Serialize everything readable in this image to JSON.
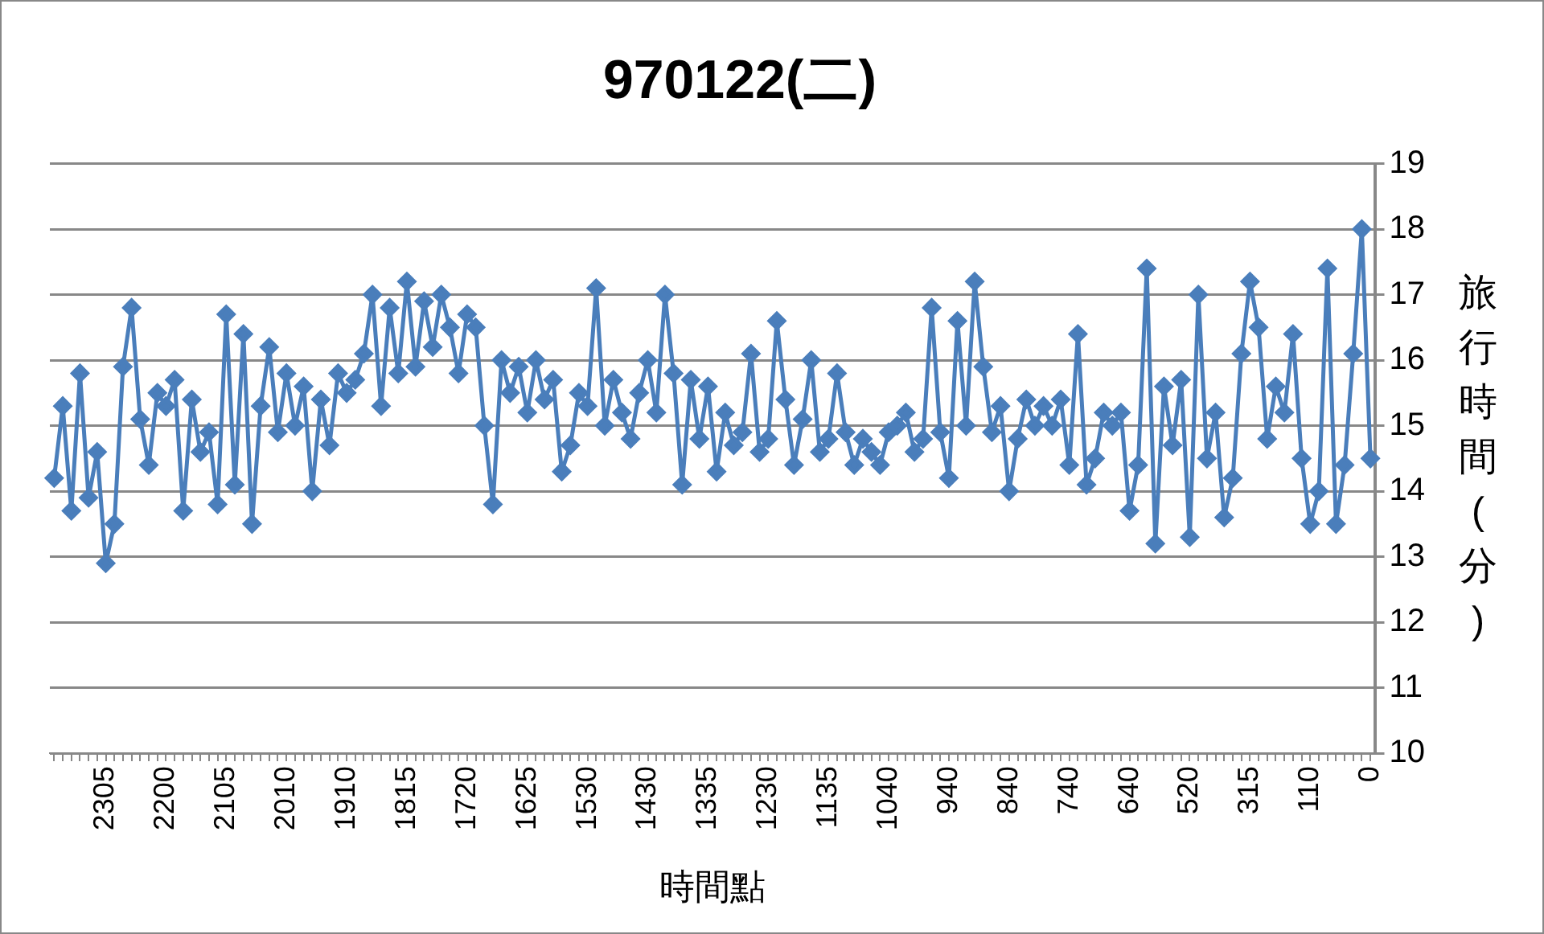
{
  "chart_data": {
    "type": "line",
    "title": "970122(二)",
    "xlabel": "時間點",
    "ylabel": "旅行時間(分)",
    "categories": [
      null,
      null,
      null,
      null,
      null,
      null,
      "2305",
      null,
      null,
      null,
      null,
      null,
      null,
      "2200",
      null,
      null,
      null,
      null,
      null,
      null,
      "2105",
      null,
      null,
      null,
      null,
      null,
      null,
      "2010",
      null,
      null,
      null,
      null,
      null,
      null,
      "1910",
      null,
      null,
      null,
      null,
      null,
      null,
      "1815",
      null,
      null,
      null,
      null,
      null,
      null,
      "1720",
      null,
      null,
      null,
      null,
      null,
      null,
      "1625",
      null,
      null,
      null,
      null,
      null,
      null,
      "1530",
      null,
      null,
      null,
      null,
      null,
      null,
      "1430",
      null,
      null,
      null,
      null,
      null,
      null,
      "1335",
      null,
      null,
      null,
      null,
      null,
      null,
      "1230",
      null,
      null,
      null,
      null,
      null,
      null,
      "1135",
      null,
      null,
      null,
      null,
      null,
      null,
      "1040",
      null,
      null,
      null,
      null,
      null,
      null,
      "940",
      null,
      null,
      null,
      null,
      null,
      null,
      "840",
      null,
      null,
      null,
      null,
      null,
      null,
      "740",
      null,
      null,
      null,
      null,
      null,
      null,
      "640",
      null,
      null,
      null,
      null,
      null,
      null,
      "520",
      null,
      null,
      null,
      null,
      null,
      null,
      "315",
      null,
      null,
      null,
      null,
      null,
      null,
      "110",
      null,
      null,
      null,
      null,
      null,
      null,
      "0"
    ],
    "series": [
      {
        "color": "#4a7ebb",
        "values": [
          14.2,
          15.3,
          13.7,
          15.8,
          13.9,
          14.6,
          12.9,
          13.5,
          15.9,
          16.8,
          15.1,
          14.4,
          15.5,
          15.3,
          15.7,
          13.7,
          15.4,
          14.6,
          14.9,
          13.8,
          16.7,
          14.1,
          16.4,
          13.5,
          15.3,
          16.2,
          14.9,
          15.8,
          15.0,
          15.6,
          14.0,
          15.4,
          14.7,
          15.8,
          15.5,
          15.7,
          16.1,
          17.0,
          15.3,
          16.8,
          15.8,
          17.2,
          15.9,
          16.9,
          16.2,
          17.0,
          16.5,
          15.8,
          16.7,
          16.5,
          15.0,
          13.8,
          16.0,
          15.5,
          15.9,
          15.2,
          16.0,
          15.4,
          15.7,
          14.3,
          14.7,
          15.5,
          15.3,
          17.1,
          15.0,
          15.7,
          15.2,
          14.8,
          15.5,
          16.0,
          15.2,
          17.0,
          15.8,
          14.1,
          15.7,
          14.8,
          15.6,
          14.3,
          15.2,
          14.7,
          14.9,
          16.1,
          14.6,
          14.8,
          16.6,
          15.4,
          14.4,
          15.1,
          16.0,
          14.6,
          14.8,
          15.8,
          14.9,
          14.4,
          14.8,
          14.6,
          14.4,
          14.9,
          15.0,
          15.2,
          14.6,
          14.8,
          16.8,
          14.9,
          14.2,
          16.6,
          15.0,
          17.2,
          15.9,
          14.9,
          15.3,
          14.0,
          14.8,
          15.4,
          15.0,
          15.3,
          15.0,
          15.4,
          14.4,
          16.4,
          14.1,
          14.5,
          15.2,
          15.0,
          15.2,
          13.7,
          14.4,
          17.4,
          13.2,
          15.6,
          14.7,
          15.7,
          13.3,
          17.0,
          14.5,
          15.2,
          13.6,
          14.2,
          16.1,
          17.2,
          16.5,
          14.8,
          15.6,
          15.2,
          16.4,
          14.5,
          13.5,
          14.0,
          17.4,
          13.5,
          14.4,
          16.1,
          18.0,
          14.5
        ]
      }
    ],
    "ylim": [
      10,
      19
    ],
    "yticks": [
      10,
      11,
      12,
      13,
      14,
      15,
      16,
      17,
      18,
      19
    ],
    "grid": "y",
    "legend": false,
    "marker": "diamond",
    "line_style": "solid"
  }
}
